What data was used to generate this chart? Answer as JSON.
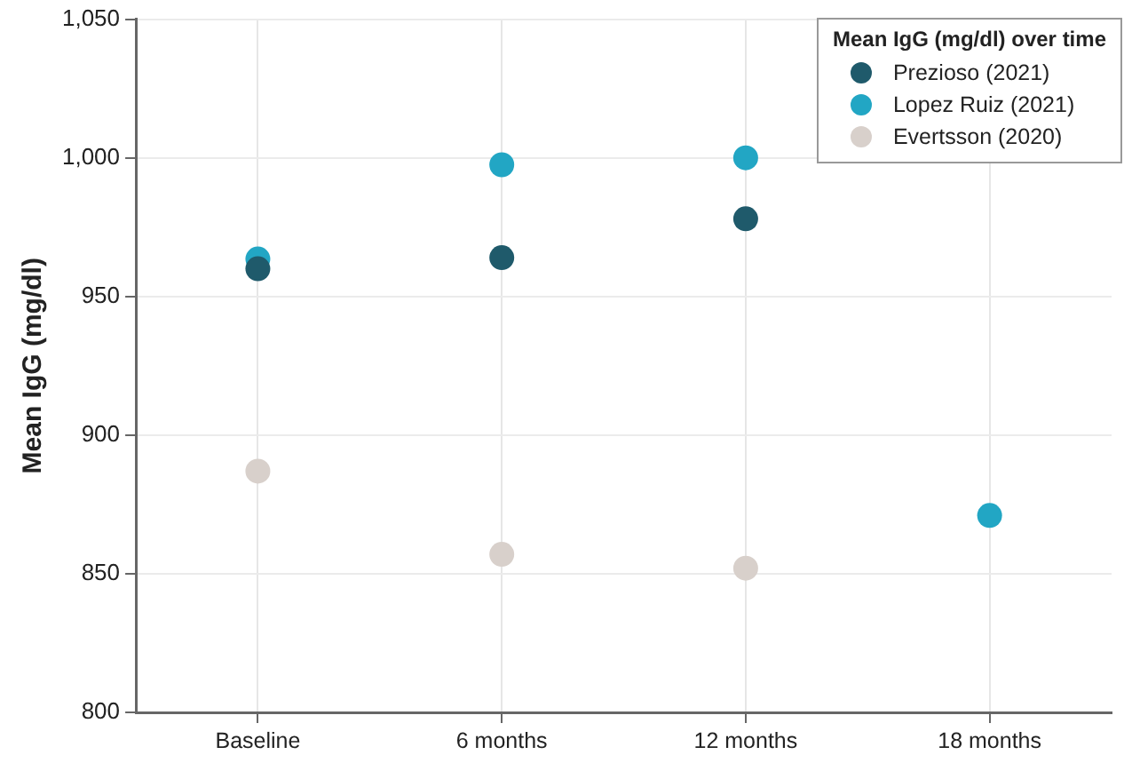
{
  "chart_data": {
    "type": "scatter",
    "ylabel": "Mean IgG (mg/dl)",
    "legend_title": "Mean IgG (mg/dl) over time",
    "categories": [
      "Baseline",
      "6 months",
      "12 months",
      "18 months"
    ],
    "series": [
      {
        "name": "Prezioso (2021)",
        "color": "#1f5a6b",
        "values": [
          960,
          964,
          978,
          null
        ]
      },
      {
        "name": "Lopez Ruiz (2021)",
        "color": "#22a6c4",
        "values": [
          963.5,
          997.5,
          1000,
          871
        ]
      },
      {
        "name": "Evertsson (2020)",
        "color": "#d8d0cb",
        "values": [
          887,
          857,
          852,
          null
        ]
      }
    ],
    "ylim": [
      800,
      1050
    ],
    "yticks": [
      {
        "value": 800,
        "label": "800"
      },
      {
        "value": 850,
        "label": "850"
      },
      {
        "value": 900,
        "label": "900"
      },
      {
        "value": 950,
        "label": "950"
      },
      {
        "value": 1000,
        "label": "1,000"
      },
      {
        "value": 1050,
        "label": "1,050"
      }
    ],
    "grid": true,
    "legend": "top right",
    "marker": "circle"
  }
}
